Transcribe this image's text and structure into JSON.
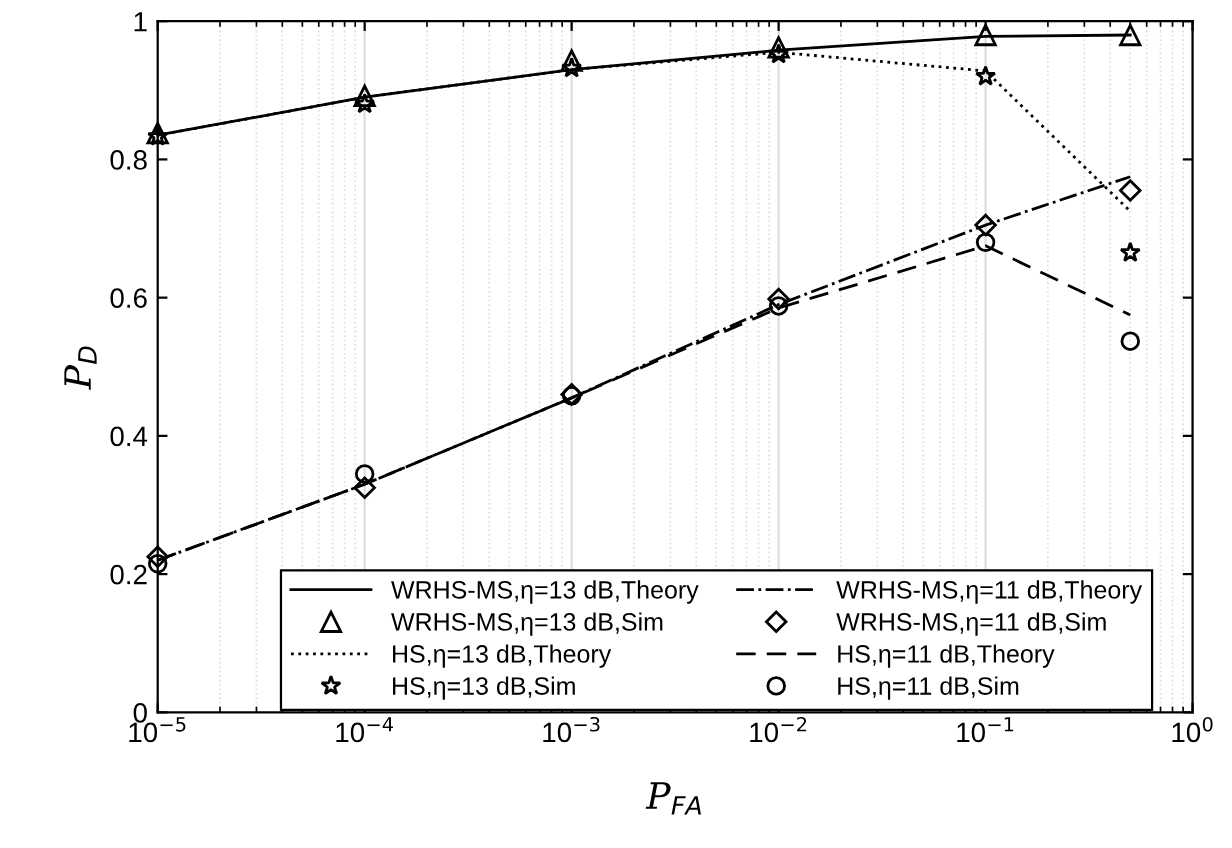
{
  "chart_data": {
    "type": "line",
    "xlabel": "P$_{FA}$",
    "ylabel": "P$_{D}$",
    "log": "x",
    "x": [
      1e-05,
      0.0001,
      0.001,
      0.01,
      0.1,
      0.5
    ],
    "xlim": [
      1e-05,
      1
    ],
    "ylim": [
      0,
      1
    ],
    "xticks": [
      {
        "value": 1e-05,
        "label": "10$^{−5}$"
      },
      {
        "value": 0.0001,
        "label": "10$^{−4}$"
      },
      {
        "value": 0.001,
        "label": "10$^{−3}$"
      },
      {
        "value": 0.01,
        "label": "10$^{−2}$"
      },
      {
        "value": 0.1,
        "label": "10$^{−1}$"
      },
      {
        "value": 1,
        "label": "10$^{0}$"
      }
    ],
    "yticks": [
      0,
      0.2,
      0.4,
      0.6,
      0.8,
      1
    ],
    "grid": "x",
    "legend": "bottom",
    "series": [
      {
        "name": "WRHS-MS,η=13 dB,Theory",
        "color": "#000000",
        "line_style": "solid",
        "marker": "none",
        "values": [
          0.835,
          0.89,
          0.93,
          0.958,
          0.978,
          0.98
        ]
      },
      {
        "name": "WRHS-MS,η=13 dB,Sim",
        "type": "scatter",
        "color": "#000000",
        "marker": "triangle",
        "values": [
          0.838,
          0.892,
          0.943,
          0.962,
          0.98,
          0.98
        ]
      },
      {
        "name": "HS,η=13 dB,Theory",
        "color": "#000000",
        "line_style": "dotted",
        "marker": "none",
        "values": [
          0.835,
          0.89,
          0.93,
          0.955,
          0.928,
          0.725
        ]
      },
      {
        "name": "HS,η=13 dB,Sim",
        "type": "scatter",
        "color": "#000000",
        "marker": "star",
        "values": [
          0.833,
          0.88,
          0.932,
          0.952,
          0.92,
          0.665
        ]
      },
      {
        "name": "WRHS-MS,η=11 dB,Theory",
        "color": "#000000",
        "line_style": "dashdot",
        "marker": "none",
        "values": [
          0.22,
          0.33,
          0.455,
          0.59,
          0.705,
          0.775
        ]
      },
      {
        "name": "WRHS-MS,η=11 dB,Sim",
        "type": "scatter",
        "color": "#000000",
        "marker": "diamond",
        "values": [
          0.225,
          0.325,
          0.46,
          0.598,
          0.705,
          0.755
        ]
      },
      {
        "name": "HS,η=11 dB,Theory",
        "color": "#000000",
        "line_style": "dashed",
        "marker": "none",
        "values": [
          0.22,
          0.33,
          0.455,
          0.585,
          0.675,
          0.575
        ]
      },
      {
        "name": "HS,η=11 dB,Sim",
        "type": "scatter",
        "color": "#000000",
        "marker": "circle",
        "values": [
          0.215,
          0.345,
          0.458,
          0.588,
          0.68,
          0.537
        ]
      }
    ]
  }
}
